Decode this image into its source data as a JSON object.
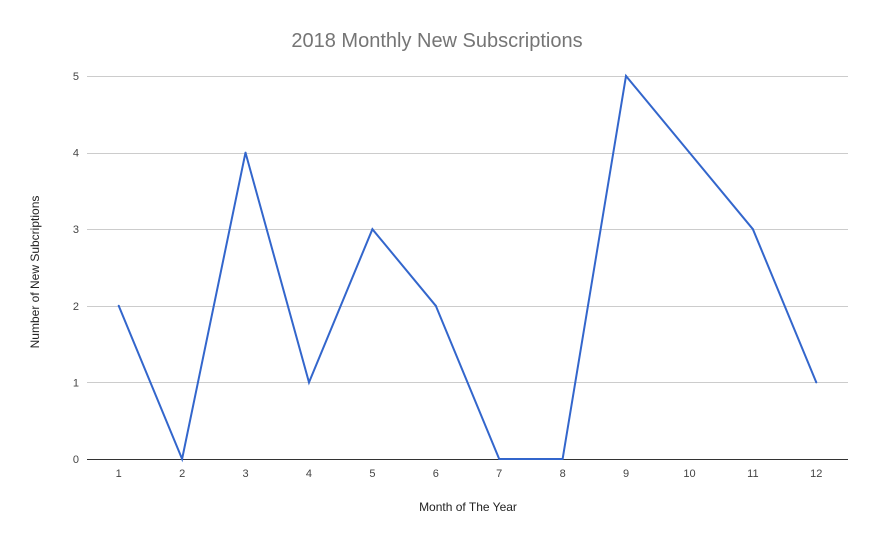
{
  "chart_data": {
    "type": "line",
    "title": "2018 Monthly New Subscriptions",
    "xlabel": "Month of The Year",
    "ylabel": "Number of New Subcriptions",
    "x": [
      1,
      2,
      3,
      4,
      5,
      6,
      7,
      8,
      9,
      10,
      11,
      12
    ],
    "series": [
      {
        "values": [
          2,
          0,
          4,
          1,
          3,
          2,
          0,
          0,
          5,
          4,
          3,
          1
        ],
        "color": "#3366cc"
      }
    ],
    "ylim": [
      0,
      5
    ],
    "yticks": [
      0,
      1,
      2,
      3,
      4,
      5
    ],
    "grid": true,
    "legend": "none"
  }
}
